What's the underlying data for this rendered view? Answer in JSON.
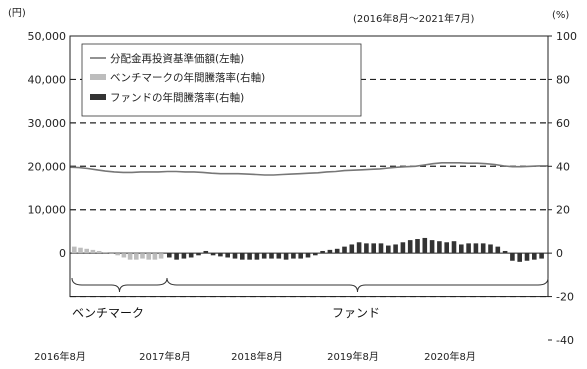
{
  "chart_data": {
    "type": "bar",
    "title": "",
    "left_unit": "(円)",
    "right_unit": "(%)",
    "period": "(2016年8月～2021年7月)",
    "left_axis": {
      "min": -20000,
      "max": 50000,
      "ticks": [
        50000,
        40000,
        30000,
        20000,
        10000,
        0
      ],
      "tick_labels": [
        "50,000",
        "40,000",
        "30,000",
        "20,000",
        "10,000",
        "0"
      ]
    },
    "right_axis": {
      "min": -40,
      "max": 100,
      "ticks": [
        100,
        80,
        60,
        40,
        20,
        0,
        -20,
        -40
      ],
      "tick_labels": [
        "100",
        "80",
        "60",
        "40",
        "20",
        "0",
        "-20",
        "-40"
      ]
    },
    "x_tick_labels": [
      "2016年8月",
      "2017年8月",
      "2018年8月",
      "2019年8月",
      "2020年8月"
    ],
    "legend": [
      "分配金再投資基準価額(左軸)",
      "ベンチマークの年間騰落率(右軸)",
      "ファンドの年間騰落率(右軸)"
    ],
    "group_labels": [
      "ベンチマーク",
      "ファンド"
    ],
    "colors": {
      "line": "#777777",
      "benchmark": "#bdbdbd",
      "fund": "#333333",
      "grid": "#222222"
    },
    "benchmark_rates": [
      3,
      2.5,
      2,
      1.5,
      1,
      0.5,
      0,
      -1,
      -2,
      -3,
      -3,
      -2.5,
      -3,
      -3,
      -2.5
    ],
    "fund_rates": [
      -2,
      -3,
      -2.5,
      -2,
      -1,
      1,
      -1,
      -1.5,
      -2,
      -2.5,
      -3,
      -3,
      -3,
      -2.5,
      -2.5,
      -2.5,
      -3,
      -2.5,
      -2.5,
      -2,
      -1,
      1,
      1.5,
      2,
      3,
      4,
      5,
      4.5,
      4.5,
      4.5,
      3.5,
      4,
      5,
      6,
      6.5,
      7,
      6,
      5.5,
      5,
      5.5,
      4,
      4.5,
      4.5,
      4.5,
      4,
      3,
      1,
      -3.5,
      -4,
      -3.5,
      -3,
      -2.5
    ],
    "nav_values": [
      19800,
      19700,
      19500,
      19200,
      18900,
      18700,
      18600,
      18600,
      18700,
      18700,
      18700,
      18800,
      18800,
      18700,
      18700,
      18600,
      18400,
      18300,
      18300,
      18300,
      18200,
      18100,
      18000,
      18000,
      18100,
      18200,
      18300,
      18400,
      18500,
      18700,
      18800,
      19000,
      19100,
      19200,
      19300,
      19400,
      19600,
      19800,
      19900,
      20000,
      20300,
      20600,
      20800,
      20800,
      20800,
      20700,
      20700,
      20600,
      20400,
      20100,
      19900,
      19900,
      20000,
      20100,
      20100
    ]
  }
}
